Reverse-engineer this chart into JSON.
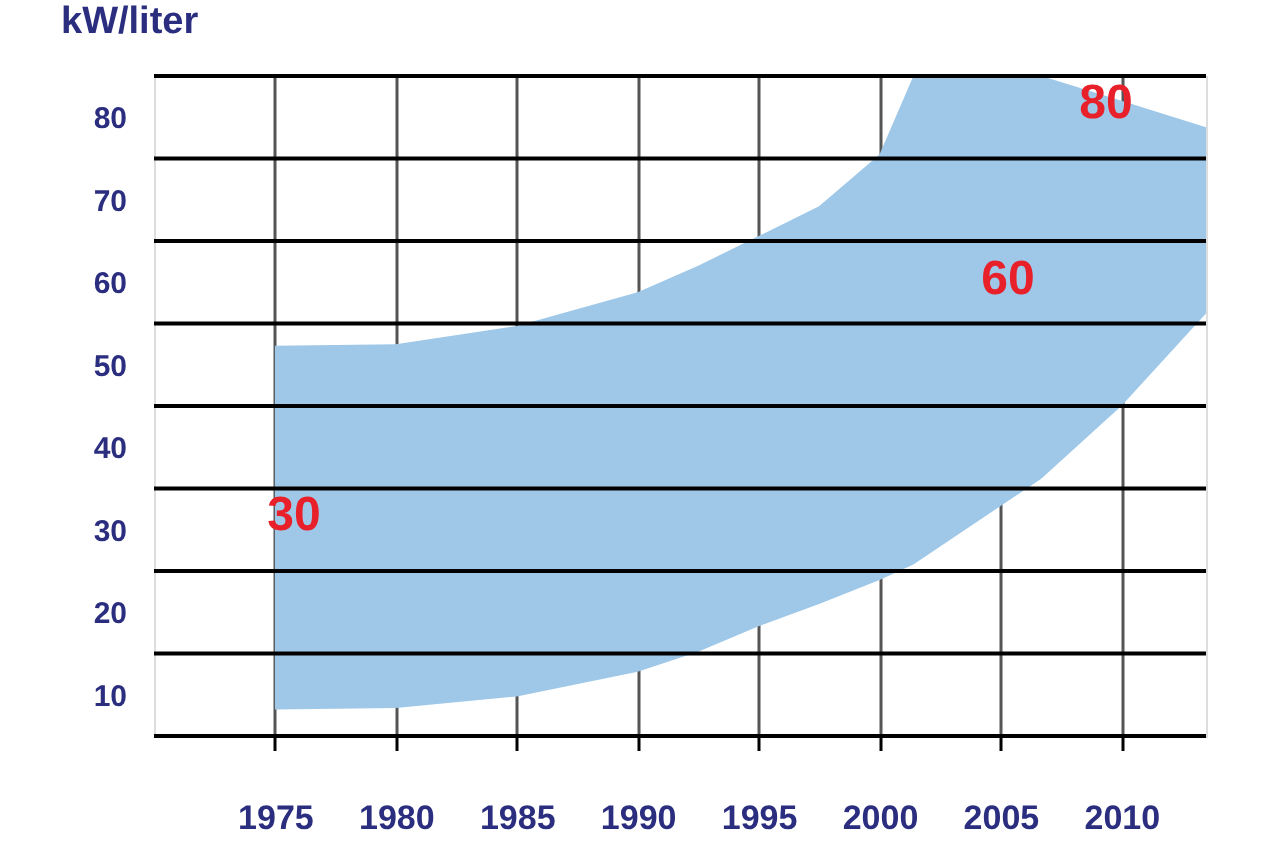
{
  "chart_data": {
    "type": "area",
    "ylabel": "kW/liter",
    "x": [
      1975,
      1980,
      1985,
      1990,
      1992.5,
      1995,
      1997.5,
      2000,
      2001.4,
      2006.7,
      2010,
      2013.5
    ],
    "series": [
      {
        "color": "#9fc8e8",
        "values": [
          null,
          null,
          null,
          null,
          null,
          null,
          null,
          null,
          null,
          null,
          null,
          null
        ],
        "upper": [
          52.3,
          52.5,
          54.7,
          58.8,
          62.0,
          65.6,
          69.2,
          75.5,
          85,
          85,
          82.0,
          78.8
        ],
        "lower": [
          8.2,
          8.4,
          9.8,
          12.8,
          15.2,
          18.3,
          21.0,
          23.9,
          25.8,
          36.2,
          45.0,
          56.2
        ]
      }
    ],
    "xlim": [
      1970,
      2013.5
    ],
    "xticks": [
      1975,
      1980,
      1985,
      1990,
      1995,
      2000,
      2005,
      2010
    ],
    "ylim": [
      5,
      85
    ],
    "yticks": [
      {
        "value": 5,
        "label": null
      },
      10,
      {
        "value": 15,
        "label": null
      },
      20,
      {
        "value": 25,
        "label": null
      },
      30,
      {
        "value": 35,
        "label": null
      },
      40,
      {
        "value": 45,
        "label": null
      },
      50,
      {
        "value": 55,
        "label": null
      },
      60,
      {
        "value": 65,
        "label": null
      },
      70,
      {
        "value": 75,
        "label": null
      },
      80,
      {
        "value": 85,
        "label": null
      }
    ],
    "grid": true,
    "annotations": [
      "30",
      "60",
      "80"
    ]
  }
}
